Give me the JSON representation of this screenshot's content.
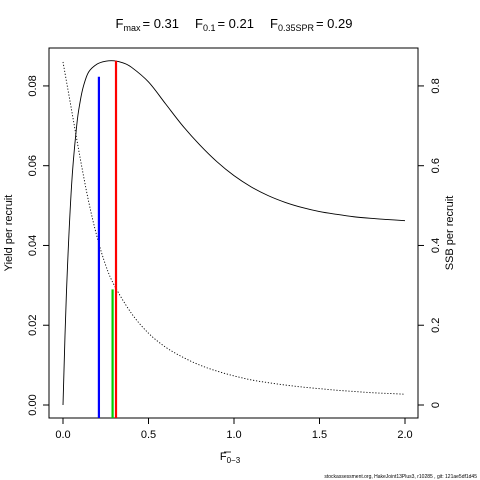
{
  "chart_data": {
    "type": "line",
    "title": {
      "fmax_label": "F",
      "fmax_sub": "max",
      "fmax_value": "= 0.31",
      "f01_label": "F",
      "f01_sub": "0.1",
      "f01_value": "= 0.21",
      "f035_label": "F",
      "f035_sub": "0.35SPR",
      "f035_value": "= 0.29"
    },
    "xlabel": "F",
    "xlabel_sub": "0−3",
    "ylabel_left": "Yield per recruit",
    "ylabel_right": "SSB per recruit",
    "xlim": [
      0,
      2
    ],
    "ylim_left": [
      0,
      0.086
    ],
    "ylim_right": [
      0,
      0.86
    ],
    "x_ticks": [
      0,
      0.5,
      1,
      1.5,
      2
    ],
    "x_tick_labels": [
      "0.0",
      "0.5",
      "1.0",
      "1.5",
      "2.0"
    ],
    "y_left_ticks": [
      0,
      0.02,
      0.04,
      0.06,
      0.08
    ],
    "y_left_tick_labels": [
      "0.00",
      "0.02",
      "0.04",
      "0.06",
      "0.08"
    ],
    "y_right_ticks": [
      0,
      0.2,
      0.4,
      0.6,
      0.8
    ],
    "y_right_tick_labels": [
      "0",
      "0.2",
      "0.4",
      "0.6",
      "0.8"
    ],
    "series": [
      {
        "axis": "left",
        "style": "solid",
        "color": "#000000",
        "x": [
          0,
          0.02,
          0.05,
          0.08,
          0.1,
          0.12,
          0.15,
          0.2,
          0.25,
          0.3,
          0.35,
          0.4,
          0.5,
          0.6,
          0.7,
          0.8,
          0.9,
          1.0,
          1.1,
          1.2,
          1.3,
          1.4,
          1.5,
          1.6,
          1.7,
          1.8,
          1.9,
          2.0
        ],
        "y": [
          0,
          0.028,
          0.055,
          0.07,
          0.076,
          0.08,
          0.0835,
          0.0855,
          0.0862,
          0.0863,
          0.0858,
          0.0847,
          0.081,
          0.0755,
          0.07,
          0.0652,
          0.061,
          0.0575,
          0.0547,
          0.0525,
          0.0508,
          0.0495,
          0.0485,
          0.0478,
          0.0472,
          0.0468,
          0.0465,
          0.0462
        ]
      },
      {
        "axis": "right",
        "style": "dotted",
        "color": "#000000",
        "x": [
          0,
          0.05,
          0.1,
          0.15,
          0.2,
          0.25,
          0.3,
          0.4,
          0.5,
          0.6,
          0.7,
          0.8,
          0.9,
          1.0,
          1.1,
          1.2,
          1.3,
          1.4,
          1.5,
          1.6,
          1.7,
          1.8,
          1.9,
          2.0
        ],
        "y": [
          0.86,
          0.74,
          0.62,
          0.51,
          0.42,
          0.35,
          0.3,
          0.23,
          0.18,
          0.145,
          0.12,
          0.1,
          0.085,
          0.073,
          0.063,
          0.056,
          0.05,
          0.045,
          0.041,
          0.037,
          0.034,
          0.031,
          0.029,
          0.027
        ]
      }
    ],
    "reference_lines": [
      {
        "x": 0.21,
        "y": 0.0823,
        "color": "#0000ff"
      },
      {
        "x": 0.31,
        "y": 0.0863,
        "color": "#ff0000"
      },
      {
        "x": 0.29,
        "y": 0.029,
        "color": "#00cc00"
      }
    ]
  },
  "footer": "stockassessment.org, HakeJoint13Plus3, r10285 , git: 121ae5df1d45"
}
